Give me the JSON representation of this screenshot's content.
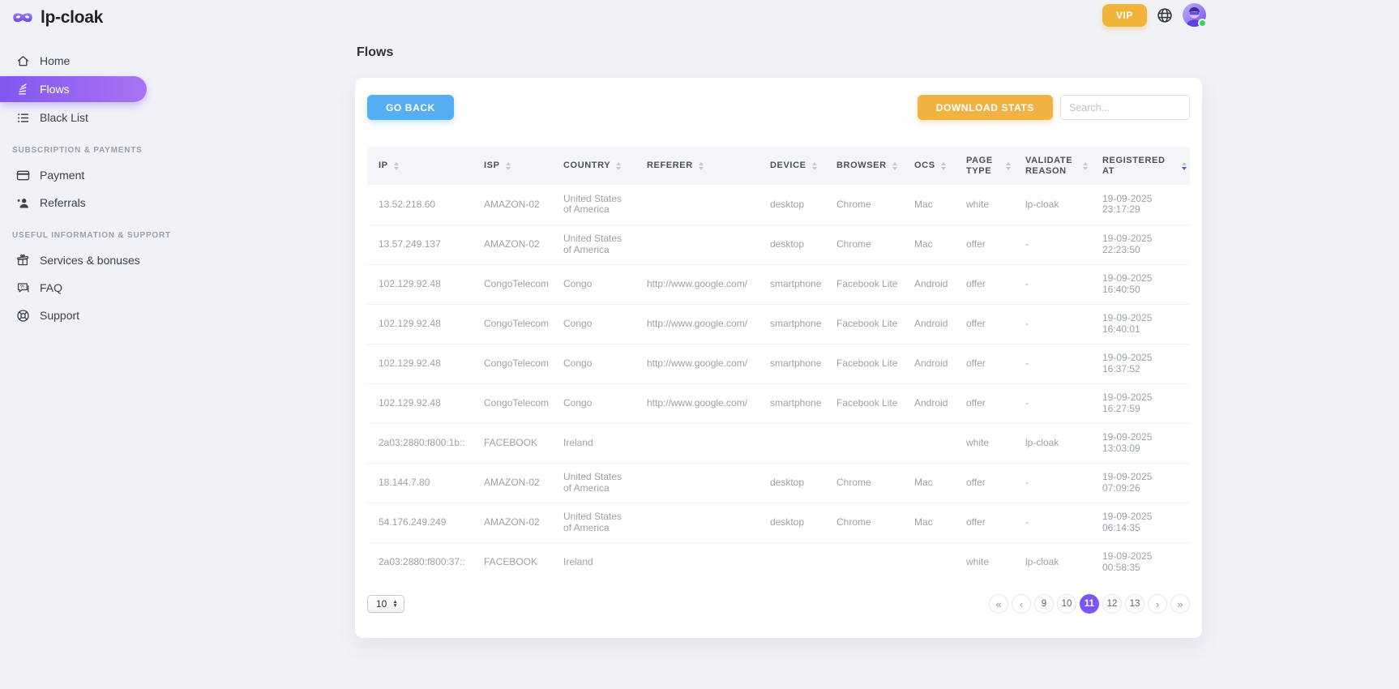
{
  "brand": {
    "name": "lp-cloak"
  },
  "topbar": {
    "vip_label": "VIP"
  },
  "sidebar": {
    "sections": [
      {
        "title": "",
        "items": [
          {
            "label": "Home",
            "icon": "home-icon",
            "active": false
          },
          {
            "label": "Flows",
            "icon": "flows-icon",
            "active": true
          },
          {
            "label": "Black List",
            "icon": "black-list-icon",
            "active": false
          }
        ]
      },
      {
        "title": "SUBSCRIPTION & PAYMENTS",
        "items": [
          {
            "label": "Payment",
            "icon": "payment-icon",
            "active": false
          },
          {
            "label": "Referrals",
            "icon": "referrals-icon",
            "active": false
          }
        ]
      },
      {
        "title": "USEFUL INFORMATION & SUPPORT",
        "items": [
          {
            "label": "Services & bonuses",
            "icon": "gift-icon",
            "active": false
          },
          {
            "label": "FAQ",
            "icon": "faq-icon",
            "active": false
          },
          {
            "label": "Support",
            "icon": "support-icon",
            "active": false
          }
        ]
      }
    ]
  },
  "page": {
    "title": "Flows"
  },
  "toolbar": {
    "go_back_label": "GO BACK",
    "download_stats_label": "DOWNLOAD STATS",
    "search_placeholder": "Search..."
  },
  "table": {
    "columns": [
      {
        "label": "IP",
        "field": "ip",
        "sort": "none"
      },
      {
        "label": "ISP",
        "field": "isp",
        "sort": "none"
      },
      {
        "label": "COUNTRY",
        "field": "country",
        "sort": "none"
      },
      {
        "label": "REFERER",
        "field": "referer",
        "sort": "none"
      },
      {
        "label": "DEVICE",
        "field": "device",
        "sort": "none"
      },
      {
        "label": "BROWSER",
        "field": "browser",
        "sort": "none"
      },
      {
        "label": "OCS",
        "field": "ocs",
        "sort": "none"
      },
      {
        "label": "PAGE TYPE",
        "field": "page_type",
        "sort": "none"
      },
      {
        "label": "VALIDATE REASON",
        "field": "validate_reason",
        "sort": "none"
      },
      {
        "label": "REGISTERED AT",
        "field": "registered_at",
        "sort": "desc"
      }
    ],
    "rows": [
      [
        "13.52.218.60",
        "AMAZON-02",
        "United States of America",
        "",
        "desktop",
        "Chrome",
        "Mac",
        "white",
        "lp-cloak",
        "19-09-2025\n23:17:29"
      ],
      [
        "13.57.249.137",
        "AMAZON-02",
        "United States of America",
        "",
        "desktop",
        "Chrome",
        "Mac",
        "offer",
        "-",
        "19-09-2025\n22:23:50"
      ],
      [
        "102.129.92.48",
        "CongoTelecom",
        "Congo",
        "http://www.google.com/",
        "smartphone",
        "Facebook Lite",
        "Android",
        "offer",
        "-",
        "19-09-2025\n16:40:50"
      ],
      [
        "102.129.92.48",
        "CongoTelecom",
        "Congo",
        "http://www.google.com/",
        "smartphone",
        "Facebook Lite",
        "Android",
        "offer",
        "-",
        "19-09-2025\n16:40:01"
      ],
      [
        "102.129.92.48",
        "CongoTelecom",
        "Congo",
        "http://www.google.com/",
        "smartphone",
        "Facebook Lite",
        "Android",
        "offer",
        "-",
        "19-09-2025\n16:37:52"
      ],
      [
        "102.129.92.48",
        "CongoTelecom",
        "Congo",
        "http://www.google.com/",
        "smartphone",
        "Facebook Lite",
        "Android",
        "offer",
        "-",
        "19-09-2025\n16:27:59"
      ],
      [
        "2a03:2880:f800:1b::",
        "FACEBOOK",
        "Ireland",
        "",
        "",
        "",
        "",
        "white",
        "lp-cloak",
        "19-09-2025\n13:03:09"
      ],
      [
        "18.144.7.80",
        "AMAZON-02",
        "United States of America",
        "",
        "desktop",
        "Chrome",
        "Mac",
        "offer",
        "-",
        "19-09-2025\n07:09:26"
      ],
      [
        "54.176.249.249",
        "AMAZON-02",
        "United States of America",
        "",
        "desktop",
        "Chrome",
        "Mac",
        "offer",
        "-",
        "19-09-2025\n06:14:35"
      ],
      [
        "2a03:2880:f800:37::",
        "FACEBOOK",
        "Ireland",
        "",
        "",
        "",
        "",
        "white",
        "lp-cloak",
        "19-09-2025\n00:58:35"
      ]
    ]
  },
  "pagination": {
    "page_size": "10",
    "active_page": "11",
    "items": [
      {
        "label": "«",
        "kind": "first",
        "active": false
      },
      {
        "label": "‹",
        "kind": "prev",
        "active": false
      },
      {
        "label": "9",
        "kind": "page",
        "active": false
      },
      {
        "label": "10",
        "kind": "page",
        "active": false
      },
      {
        "label": "11",
        "kind": "page",
        "active": true
      },
      {
        "label": "12",
        "kind": "page",
        "active": false
      },
      {
        "label": "13",
        "kind": "page",
        "active": false
      },
      {
        "label": "›",
        "kind": "next",
        "active": false
      },
      {
        "label": "»",
        "kind": "last",
        "active": false
      }
    ]
  },
  "colors": {
    "accent_purple": "#7e55f3",
    "button_blue": "#56aef2",
    "button_orange": "#f0b242",
    "vip_orange": "#f2b33b",
    "sort_active_blue": "#4161e8",
    "status_green": "#3ed160",
    "page_background": "#f1f2f8"
  }
}
